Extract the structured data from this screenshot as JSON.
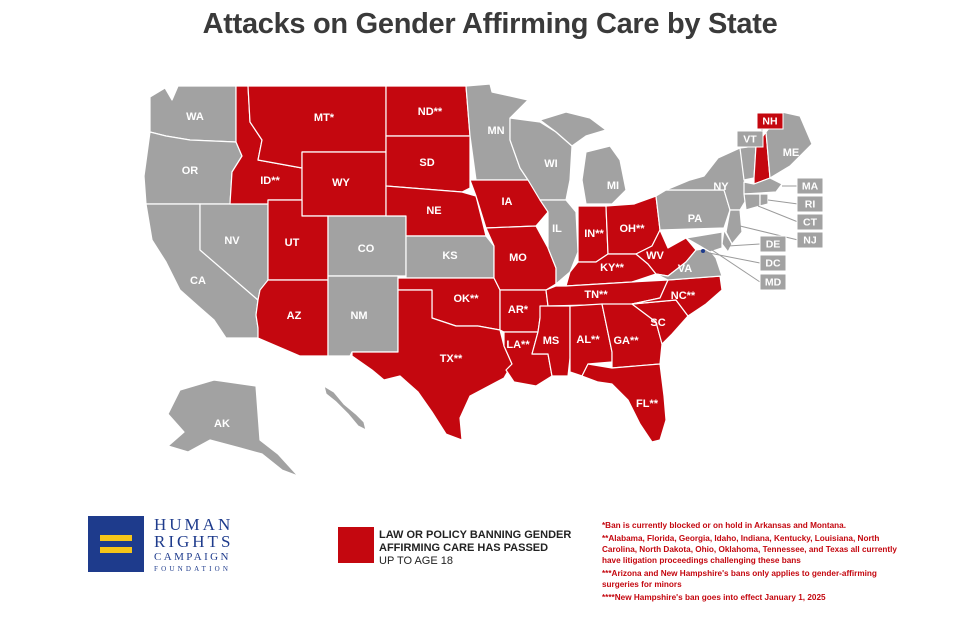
{
  "title": "Attacks on Gender Affirming Care by State",
  "colors": {
    "banned": "#c4070f",
    "none": "#a2a2a2",
    "brand_blue": "#1e3b8c",
    "brand_yellow": "#f6c519"
  },
  "legend": {
    "label": "LAW OR POLICY BANNING GENDER AFFIRMING CARE HAS PASSED",
    "sub": "UP TO AGE 18"
  },
  "logo": {
    "line1": "HUMAN",
    "line2": "RIGHTS",
    "line3": "CAMPAIGN",
    "line4": "FOUNDATION"
  },
  "notes": [
    "*Ban is currently blocked or on hold in Arkansas and Montana.",
    "**Alabama, Florida, Georgia, Idaho, Indiana, Kentucky, Louisiana, North Carolina, North Dakota, Ohio, Oklahoma, Tennessee, and Texas all currently have litigation proceedings challenging these bans",
    "***Arizona and New Hampshire's bans only applies to gender-affirming surgeries for minors",
    "****New Hampshire's ban goes into effect January 1, 2025"
  ],
  "states": [
    {
      "id": "WA",
      "label": "WA",
      "status": "none"
    },
    {
      "id": "OR",
      "label": "OR",
      "status": "none"
    },
    {
      "id": "CA",
      "label": "CA",
      "status": "none"
    },
    {
      "id": "NV",
      "label": "NV",
      "status": "none"
    },
    {
      "id": "ID",
      "label": "ID**",
      "status": "banned"
    },
    {
      "id": "MT",
      "label": "MT*",
      "status": "banned"
    },
    {
      "id": "WY",
      "label": "WY",
      "status": "banned"
    },
    {
      "id": "UT",
      "label": "UT",
      "status": "banned"
    },
    {
      "id": "AZ",
      "label": "AZ",
      "status": "banned"
    },
    {
      "id": "CO",
      "label": "CO",
      "status": "none"
    },
    {
      "id": "NM",
      "label": "NM",
      "status": "none"
    },
    {
      "id": "ND",
      "label": "ND**",
      "status": "banned"
    },
    {
      "id": "SD",
      "label": "SD",
      "status": "banned"
    },
    {
      "id": "NE",
      "label": "NE",
      "status": "banned"
    },
    {
      "id": "KS",
      "label": "KS",
      "status": "none"
    },
    {
      "id": "OK",
      "label": "OK**",
      "status": "banned"
    },
    {
      "id": "TX",
      "label": "TX**",
      "status": "banned"
    },
    {
      "id": "MN",
      "label": "MN",
      "status": "none"
    },
    {
      "id": "IA",
      "label": "IA",
      "status": "banned"
    },
    {
      "id": "MO",
      "label": "MO",
      "status": "banned"
    },
    {
      "id": "AR",
      "label": "AR*",
      "status": "banned"
    },
    {
      "id": "LA",
      "label": "LA**",
      "status": "banned"
    },
    {
      "id": "WI",
      "label": "WI",
      "status": "none"
    },
    {
      "id": "IL",
      "label": "IL",
      "status": "none"
    },
    {
      "id": "MI",
      "label": "MI",
      "status": "none"
    },
    {
      "id": "IN",
      "label": "IN**",
      "status": "banned"
    },
    {
      "id": "OH",
      "label": "OH**",
      "status": "banned"
    },
    {
      "id": "KY",
      "label": "KY**",
      "status": "banned"
    },
    {
      "id": "TN",
      "label": "TN**",
      "status": "banned"
    },
    {
      "id": "MS",
      "label": "MS",
      "status": "banned"
    },
    {
      "id": "AL",
      "label": "AL**",
      "status": "banned"
    },
    {
      "id": "GA",
      "label": "GA**",
      "status": "banned"
    },
    {
      "id": "FL",
      "label": "FL**",
      "status": "banned"
    },
    {
      "id": "SC",
      "label": "SC",
      "status": "banned"
    },
    {
      "id": "NC",
      "label": "NC**",
      "status": "banned"
    },
    {
      "id": "WV",
      "label": "WV",
      "status": "banned"
    },
    {
      "id": "VA",
      "label": "VA",
      "status": "none"
    },
    {
      "id": "PA",
      "label": "PA",
      "status": "none"
    },
    {
      "id": "NY",
      "label": "NY",
      "status": "none"
    },
    {
      "id": "ME",
      "label": "ME",
      "status": "none"
    },
    {
      "id": "NH",
      "label": "NH",
      "status": "banned"
    },
    {
      "id": "VT",
      "label": "VT",
      "status": "none"
    },
    {
      "id": "MA",
      "label": "MA",
      "status": "none"
    },
    {
      "id": "RI",
      "label": "RI",
      "status": "none"
    },
    {
      "id": "CT",
      "label": "CT",
      "status": "none"
    },
    {
      "id": "NJ",
      "label": "NJ",
      "status": "none"
    },
    {
      "id": "DE",
      "label": "DE",
      "status": "none"
    },
    {
      "id": "DC",
      "label": "DC",
      "status": "none"
    },
    {
      "id": "MD",
      "label": "MD",
      "status": "none"
    },
    {
      "id": "AK",
      "label": "AK",
      "status": "none"
    },
    {
      "id": "HI",
      "label": "",
      "status": "none"
    }
  ]
}
